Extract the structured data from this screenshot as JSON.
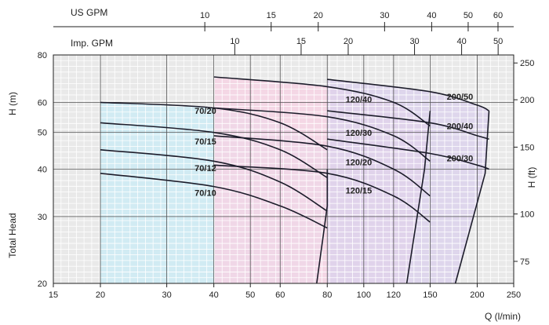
{
  "chart_data": {
    "type": "line",
    "x_scale": "log",
    "y_scale": "log",
    "xlabel": "Q  (l/min)",
    "ylabel": "H (m)",
    "ylabel_left": "Total Head",
    "ylabel_right": "H (ft)",
    "top_axis_1_label": "US GPM",
    "top_axis_2_label": "Imp. GPM",
    "x_ticks": [
      15,
      20,
      30,
      40,
      50,
      60,
      80,
      100,
      120,
      150,
      200,
      250
    ],
    "y_ticks": [
      20,
      30,
      40,
      50,
      60,
      80
    ],
    "ft_ticks": [
      75,
      100,
      150,
      200,
      250
    ],
    "us_gpm_ticks": [
      10,
      15,
      20,
      30,
      40,
      50,
      60
    ],
    "imp_gpm_ticks": [
      10,
      15,
      20,
      30,
      40,
      50
    ],
    "xlim": [
      15,
      250
    ],
    "ylim": [
      20,
      80
    ],
    "grid": true,
    "regions": [
      {
        "name": "70",
        "color": "#cdebf5",
        "top_head": 60,
        "x_min": 20,
        "x_max": 80,
        "right_edge": [
          [
            80,
            40
          ],
          [
            80,
            32
          ],
          [
            75,
            20
          ]
        ]
      },
      {
        "name": "120",
        "color": "#f6d3e4",
        "top_head": 70,
        "x_min": 40,
        "x_max": 150,
        "right_edge": [
          [
            150,
            57
          ],
          [
            145,
            40
          ],
          [
            130,
            20
          ]
        ]
      },
      {
        "name": "200",
        "color": "#dcd2ec",
        "top_head": 70,
        "x_min": 80,
        "x_max": 215,
        "right_edge": [
          [
            215,
            57
          ],
          [
            210,
            39
          ],
          [
            175,
            20
          ]
        ]
      }
    ],
    "series": [
      {
        "name": "70/20",
        "points": [
          [
            20,
            60
          ],
          [
            40,
            58
          ],
          [
            60,
            53
          ],
          [
            80,
            45
          ]
        ]
      },
      {
        "name": "70/15",
        "points": [
          [
            20,
            53
          ],
          [
            40,
            50
          ],
          [
            60,
            45
          ],
          [
            80,
            38
          ]
        ]
      },
      {
        "name": "70/12",
        "points": [
          [
            20,
            45
          ],
          [
            40,
            42
          ],
          [
            60,
            37
          ],
          [
            80,
            31
          ]
        ]
      },
      {
        "name": "70/10",
        "points": [
          [
            20,
            39
          ],
          [
            40,
            36
          ],
          [
            60,
            32
          ],
          [
            80,
            28
          ]
        ]
      },
      {
        "name": "120/40",
        "points": [
          [
            40,
            70
          ],
          [
            80,
            66
          ],
          [
            120,
            60
          ],
          [
            150,
            52
          ]
        ]
      },
      {
        "name": "120/30",
        "points": [
          [
            40,
            58
          ],
          [
            80,
            55
          ],
          [
            120,
            49
          ],
          [
            150,
            42
          ]
        ]
      },
      {
        "name": "120/20",
        "points": [
          [
            40,
            49
          ],
          [
            80,
            46
          ],
          [
            120,
            40
          ],
          [
            150,
            34
          ]
        ]
      },
      {
        "name": "120/15",
        "points": [
          [
            40,
            41
          ],
          [
            80,
            39
          ],
          [
            120,
            34
          ],
          [
            150,
            29
          ]
        ]
      },
      {
        "name": "200/50",
        "points": [
          [
            80,
            69
          ],
          [
            150,
            64
          ],
          [
            200,
            59
          ],
          [
            215,
            57
          ]
        ]
      },
      {
        "name": "200/40",
        "points": [
          [
            80,
            57
          ],
          [
            150,
            53
          ],
          [
            200,
            49
          ],
          [
            215,
            48
          ]
        ]
      },
      {
        "name": "200/30",
        "points": [
          [
            80,
            48
          ],
          [
            150,
            44
          ],
          [
            200,
            41
          ],
          [
            215,
            40
          ]
        ]
      }
    ],
    "label_positions": [
      {
        "name": "70/20",
        "x": 38,
        "y": 56
      },
      {
        "name": "70/15",
        "x": 38,
        "y": 46.5
      },
      {
        "name": "70/12",
        "x": 38,
        "y": 39.5
      },
      {
        "name": "70/10",
        "x": 38,
        "y": 34
      },
      {
        "name": "120/40",
        "x": 97,
        "y": 60
      },
      {
        "name": "120/30",
        "x": 97,
        "y": 49
      },
      {
        "name": "120/20",
        "x": 97,
        "y": 41
      },
      {
        "name": "120/15",
        "x": 97,
        "y": 34.5
      },
      {
        "name": "200/50",
        "x": 180,
        "y": 61
      },
      {
        "name": "200/40",
        "x": 180,
        "y": 51
      },
      {
        "name": "200/30",
        "x": 180,
        "y": 42
      }
    ]
  }
}
